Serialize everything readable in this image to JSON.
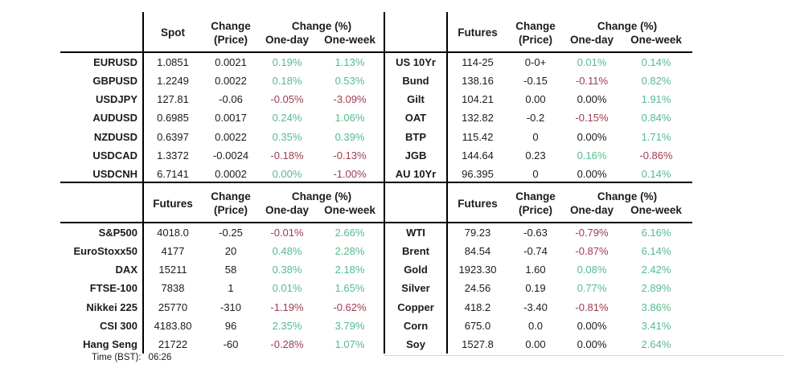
{
  "colors": {
    "green": "#55bb8d",
    "red": "#9e3b4f",
    "ink": "#1b1b1b",
    "border": "#000000"
  },
  "footer": {
    "label": "Time (BST):",
    "value": "06:26"
  },
  "chart_data": [
    {
      "type": "table",
      "name": "fx-spot",
      "value_header": "Spot",
      "change_header_line1": "Change",
      "change_header_line2": "(Price)",
      "pct_header": "Change (%)",
      "one_day_header": "One-day",
      "one_week_header": "One-week",
      "rows": [
        {
          "label": "EURUSD",
          "v": "1.0851",
          "chg": "0.0021",
          "d1": "0.19%",
          "d1c": "g",
          "w1": "1.13%",
          "w1c": "g"
        },
        {
          "label": "GBPUSD",
          "v": "1.2249",
          "chg": "0.0022",
          "d1": "0.18%",
          "d1c": "g",
          "w1": "0.53%",
          "w1c": "g"
        },
        {
          "label": "USDJPY",
          "v": "127.81",
          "chg": "-0.06",
          "d1": "-0.05%",
          "d1c": "r",
          "w1": "-3.09%",
          "w1c": "r"
        },
        {
          "label": "AUDUSD",
          "v": "0.6985",
          "chg": "0.0017",
          "d1": "0.24%",
          "d1c": "g",
          "w1": "1.06%",
          "w1c": "g"
        },
        {
          "label": "NZDUSD",
          "v": "0.6397",
          "chg": "0.0022",
          "d1": "0.35%",
          "d1c": "g",
          "w1": "0.39%",
          "w1c": "g"
        },
        {
          "label": "USDCAD",
          "v": "1.3372",
          "chg": "-0.0024",
          "d1": "-0.18%",
          "d1c": "r",
          "w1": "-0.13%",
          "w1c": "r"
        },
        {
          "label": "USDCNH",
          "v": "6.7141",
          "chg": "0.0002",
          "d1": "0.00%",
          "d1c": "g",
          "w1": "-1.00%",
          "w1c": "r"
        }
      ]
    },
    {
      "type": "table",
      "name": "rates-futures",
      "value_header": "Futures",
      "change_header_line1": "Change",
      "change_header_line2": "(Price)",
      "pct_header": "Change (%)",
      "one_day_header": "One-day",
      "one_week_header": "One-week",
      "rows": [
        {
          "label": "US 10Yr",
          "v": "114-25",
          "chg": "0-0+",
          "d1": "0.01%",
          "d1c": "g",
          "w1": "0.14%",
          "w1c": "g"
        },
        {
          "label": "Bund",
          "v": "138.16",
          "chg": "-0.15",
          "d1": "-0.11%",
          "d1c": "r",
          "w1": "0.82%",
          "w1c": "g"
        },
        {
          "label": "Gilt",
          "v": "104.21",
          "chg": "0.00",
          "d1": "0.00%",
          "d1c": "k",
          "w1": "1.91%",
          "w1c": "g"
        },
        {
          "label": "OAT",
          "v": "132.82",
          "chg": "-0.2",
          "d1": "-0.15%",
          "d1c": "r",
          "w1": "0.84%",
          "w1c": "g"
        },
        {
          "label": "BTP",
          "v": "115.42",
          "chg": "0",
          "d1": "0.00%",
          "d1c": "k",
          "w1": "1.71%",
          "w1c": "g"
        },
        {
          "label": "JGB",
          "v": "144.64",
          "chg": "0.23",
          "d1": "0.16%",
          "d1c": "g",
          "w1": "-0.86%",
          "w1c": "r"
        },
        {
          "label": "AU 10Yr",
          "v": "96.395",
          "chg": "0",
          "d1": "0.00%",
          "d1c": "k",
          "w1": "0.14%",
          "w1c": "g"
        }
      ]
    },
    {
      "type": "table",
      "name": "equity-futures",
      "value_header": "Futures",
      "change_header_line1": "Change",
      "change_header_line2": "(Price)",
      "pct_header": "Change (%)",
      "one_day_header": "One-day",
      "one_week_header": "One-week",
      "rows": [
        {
          "label": "S&P500",
          "v": "4018.0",
          "chg": "-0.25",
          "d1": "-0.01%",
          "d1c": "r",
          "w1": "2.66%",
          "w1c": "g"
        },
        {
          "label": "EuroStoxx50",
          "v": "4177",
          "chg": "20",
          "d1": "0.48%",
          "d1c": "g",
          "w1": "2.28%",
          "w1c": "g"
        },
        {
          "label": "DAX",
          "v": "15211",
          "chg": "58",
          "d1": "0.38%",
          "d1c": "g",
          "w1": "2.18%",
          "w1c": "g"
        },
        {
          "label": "FTSE-100",
          "v": "7838",
          "chg": "1",
          "d1": "0.01%",
          "d1c": "g",
          "w1": "1.65%",
          "w1c": "g"
        },
        {
          "label": "Nikkei 225",
          "v": "25770",
          "chg": "-310",
          "d1": "-1.19%",
          "d1c": "r",
          "w1": "-0.62%",
          "w1c": "r"
        },
        {
          "label": "CSI 300",
          "v": "4183.80",
          "chg": "96",
          "d1": "2.35%",
          "d1c": "g",
          "w1": "3.79%",
          "w1c": "g"
        },
        {
          "label": "Hang Seng",
          "v": "21722",
          "chg": "-60",
          "d1": "-0.28%",
          "d1c": "r",
          "w1": "1.07%",
          "w1c": "g"
        }
      ]
    },
    {
      "type": "table",
      "name": "commodity-futures",
      "value_header": "Futures",
      "change_header_line1": "Change",
      "change_header_line2": "(Price)",
      "pct_header": "Change (%)",
      "one_day_header": "One-day",
      "one_week_header": "One-week",
      "rows": [
        {
          "label": "WTI",
          "v": "79.23",
          "chg": "-0.63",
          "d1": "-0.79%",
          "d1c": "r",
          "w1": "6.16%",
          "w1c": "g"
        },
        {
          "label": "Brent",
          "v": "84.54",
          "chg": "-0.74",
          "d1": "-0.87%",
          "d1c": "r",
          "w1": "6.14%",
          "w1c": "g"
        },
        {
          "label": "Gold",
          "v": "1923.30",
          "chg": "1.60",
          "d1": "0.08%",
          "d1c": "g",
          "w1": "2.42%",
          "w1c": "g"
        },
        {
          "label": "Silver",
          "v": "24.56",
          "chg": "0.19",
          "d1": "0.77%",
          "d1c": "g",
          "w1": "2.89%",
          "w1c": "g"
        },
        {
          "label": "Copper",
          "v": "418.2",
          "chg": "-3.40",
          "d1": "-0.81%",
          "d1c": "r",
          "w1": "3.86%",
          "w1c": "g"
        },
        {
          "label": "Corn",
          "v": "675.0",
          "chg": "0.0",
          "d1": "0.00%",
          "d1c": "k",
          "w1": "3.41%",
          "w1c": "g"
        },
        {
          "label": "Soy",
          "v": "1527.8",
          "chg": "0.00",
          "d1": "0.00%",
          "d1c": "k",
          "w1": "2.64%",
          "w1c": "g"
        }
      ]
    }
  ]
}
